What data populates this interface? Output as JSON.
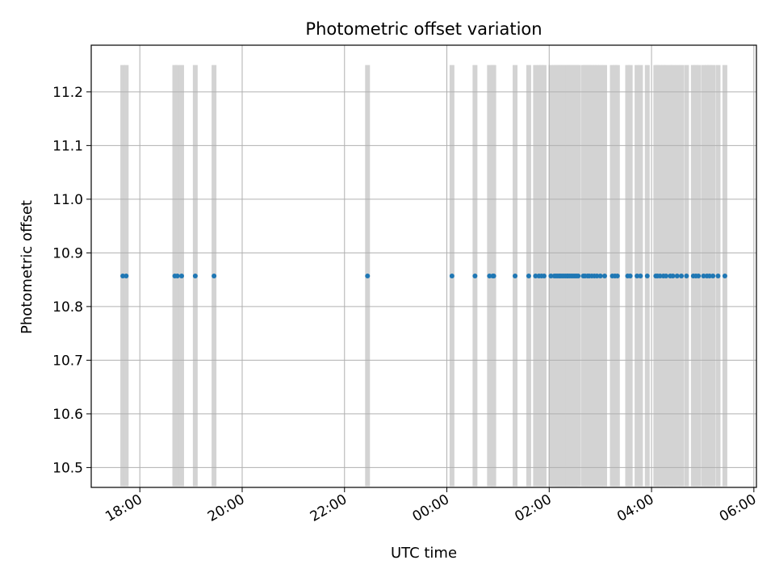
{
  "chart_data": {
    "type": "scatter",
    "title": "Photometric offset variation",
    "xlabel": "UTC time",
    "ylabel": "Photometric offset",
    "x_is_time": true,
    "x_start": "17:03",
    "x_end": "06:03",
    "xlim": [
      "17:03",
      "06:03"
    ],
    "ylim": [
      10.463,
      11.287
    ],
    "grid": true,
    "x_ticks": [
      "18:00",
      "20:00",
      "22:00",
      "00:00",
      "02:00",
      "04:00",
      "06:00"
    ],
    "y_ticks": [
      "10.5",
      "10.6",
      "10.7",
      "10.8",
      "10.9",
      "11.0",
      "11.1",
      "11.2"
    ],
    "bar_range": [
      10.465,
      11.25
    ],
    "colors": {
      "points": "#1f77b4",
      "bars": "#d3d3d3",
      "grid": "#b0b0b0"
    },
    "points": {
      "y": 10.857,
      "x": [
        "17:40",
        "17:44",
        "18:41",
        "18:44",
        "18:49",
        "19:05",
        "19:27",
        "22:27",
        "00:06",
        "00:33",
        "00:50",
        "00:54",
        "00:55",
        "01:20",
        "01:36",
        "01:44",
        "01:48",
        "01:51",
        "01:54",
        "02:02",
        "02:06",
        "02:08",
        "02:10",
        "02:12",
        "02:13",
        "02:15",
        "02:17",
        "02:19",
        "02:21",
        "02:22",
        "02:24",
        "02:26",
        "02:28",
        "02:30",
        "02:32",
        "02:34",
        "02:40",
        "02:42",
        "02:45",
        "02:47",
        "02:50",
        "02:53",
        "02:56",
        "03:00",
        "03:05",
        "03:14",
        "03:17",
        "03:20",
        "03:32",
        "03:35",
        "03:43",
        "03:47",
        "03:55",
        "04:05",
        "04:07",
        "04:10",
        "04:14",
        "04:17",
        "04:22",
        "04:25",
        "04:30",
        "04:35",
        "04:41",
        "04:49",
        "04:52",
        "04:55",
        "05:01",
        "05:05",
        "05:08",
        "05:12",
        "05:18",
        "05:26"
      ]
    }
  }
}
